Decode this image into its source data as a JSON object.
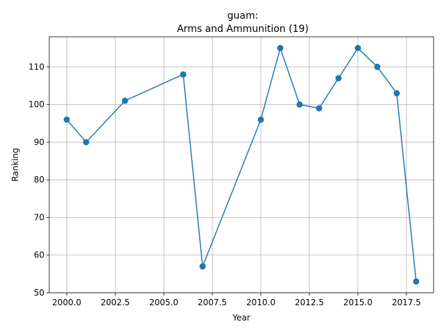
{
  "chart_data": {
    "type": "line",
    "title": "guam:",
    "subtitle": "Arms and Ammunition (19)",
    "xlabel": "Year",
    "ylabel": "Ranking",
    "xlim": [
      1999.1,
      2018.9
    ],
    "ylim": [
      50,
      118
    ],
    "xticks": [
      2000,
      2002.5,
      2005,
      2007.5,
      2010,
      2012.5,
      2015,
      2017.5
    ],
    "xtick_labels": [
      "2000.0",
      "2002.5",
      "2005.0",
      "2007.5",
      "2010.0",
      "2012.5",
      "2015.0",
      "2017.5"
    ],
    "yticks": [
      50,
      60,
      70,
      80,
      90,
      100,
      110
    ],
    "ytick_labels": [
      "50",
      "60",
      "70",
      "80",
      "90",
      "100",
      "110"
    ],
    "grid": true,
    "color": "#1f77b4",
    "series": [
      {
        "x": [
          2000,
          2001,
          2003,
          2006,
          2007,
          2010,
          2011,
          2012,
          2013,
          2014,
          2015,
          2016,
          2017,
          2018
        ],
        "y": [
          96,
          90,
          101,
          108,
          57,
          96,
          115,
          100,
          99,
          107,
          115,
          110,
          103,
          53
        ]
      }
    ]
  }
}
